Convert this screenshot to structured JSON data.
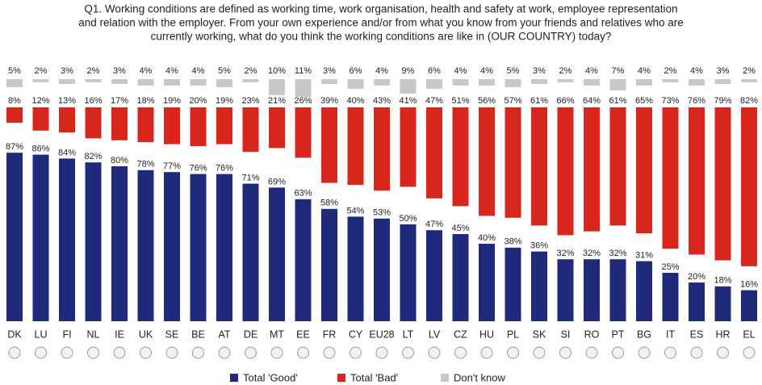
{
  "chart_data": {
    "type": "bar",
    "title": [
      "Q1. Working conditions are defined as working time, work organisation, health and safety at work, employee representation",
      "and relation with the employer. From your own experience and/or from what you know from your friends and relatives who are",
      "currently working, what do you think the working conditions are like in (OUR COUNTRY) today?"
    ],
    "categories": [
      "DK",
      "LU",
      "FI",
      "NL",
      "IE",
      "UK",
      "SE",
      "BE",
      "AT",
      "DE",
      "MT",
      "EE",
      "FR",
      "CY",
      "EU28",
      "LT",
      "LV",
      "CZ",
      "HU",
      "PL",
      "SK",
      "SI",
      "RO",
      "PT",
      "BG",
      "IT",
      "ES",
      "HR",
      "EL"
    ],
    "series": [
      {
        "name": "Total 'Good'",
        "color": "#1f2a7a",
        "values": [
          87,
          86,
          84,
          82,
          80,
          78,
          77,
          76,
          76,
          71,
          69,
          63,
          58,
          54,
          53,
          50,
          47,
          45,
          40,
          38,
          36,
          32,
          32,
          32,
          31,
          25,
          20,
          18,
          16
        ],
        "value_labels": [
          "87%",
          "86%",
          "84%",
          "82%",
          "80%",
          "78%",
          "77%",
          "76%",
          "76%",
          "71%",
          "69%",
          "63%",
          "58%",
          "54%",
          "53%",
          "50%",
          "47%",
          "45%",
          "40%",
          "38%",
          "36%",
          "32%",
          "32%",
          "32%",
          "31%",
          "25%",
          "20%",
          "18%",
          "16%"
        ]
      },
      {
        "name": "Total 'Bad'",
        "color": "#d9261c",
        "values": [
          8,
          12,
          13,
          16,
          17,
          18,
          19,
          20,
          19,
          23,
          21,
          26,
          39,
          40,
          43,
          41,
          47,
          51,
          56,
          57,
          61,
          66,
          64,
          61,
          65,
          73,
          76,
          79,
          82
        ],
        "value_labels": [
          "8%",
          "12%",
          "13%",
          "16%",
          "17%",
          "18%",
          "19%",
          "20%",
          "19%",
          "23%",
          "21%",
          "26%",
          "39%",
          "40%",
          "43%",
          "41%",
          "47%",
          "51%",
          "56%",
          "57%",
          "61%",
          "66%",
          "64%",
          "61%",
          "65%",
          "73%",
          "76%",
          "79%",
          "82%"
        ]
      },
      {
        "name": "Don't know",
        "color": "#c8c8c8",
        "values": [
          5,
          2,
          3,
          2,
          3,
          4,
          4,
          4,
          5,
          2,
          10,
          11,
          3,
          6,
          4,
          9,
          6,
          4,
          4,
          5,
          3,
          2,
          4,
          7,
          4,
          2,
          4,
          3,
          2
        ],
        "value_labels": [
          "5%",
          "2%",
          "3%",
          "2%",
          "3%",
          "4%",
          "4%",
          "4%",
          "5%",
          "2%",
          "10%",
          "11%",
          "3%",
          "6%",
          "4%",
          "9%",
          "6%",
          "4%",
          "4%",
          "5%",
          "3%",
          "2%",
          "4%",
          "7%",
          "4%",
          "2%",
          "4%",
          "3%",
          "2%"
        ]
      }
    ]
  }
}
